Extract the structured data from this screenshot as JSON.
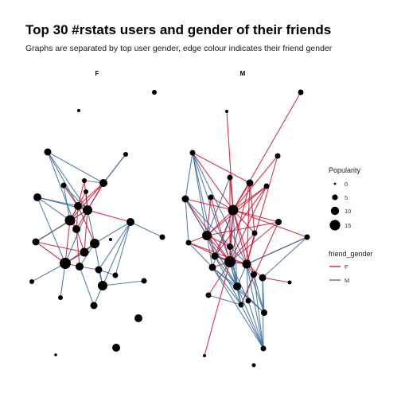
{
  "title": "Top 30 #rstats users and gender of their friends",
  "subtitle": "Graphs are separated by top user gender, edge colour indicates their friend gender",
  "facets": [
    "F",
    "M"
  ],
  "legend": {
    "popularity": {
      "title": "Popularity",
      "labels": [
        "0",
        "5",
        "10",
        "15"
      ],
      "values": [
        0,
        5,
        10,
        15
      ]
    },
    "friend_gender": {
      "title": "friend_gender",
      "labels": [
        "F",
        "M"
      ],
      "colors": [
        "#c8102e",
        "#3a6a9c"
      ]
    }
  }
}
